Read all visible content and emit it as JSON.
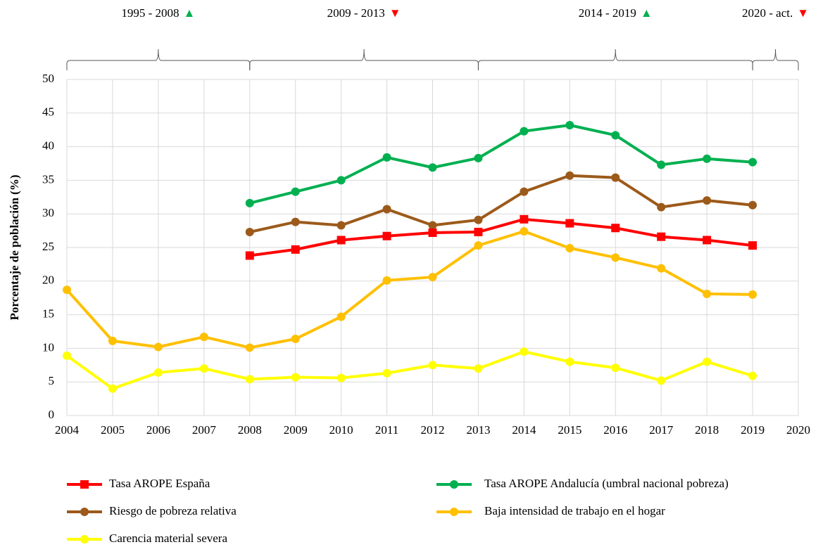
{
  "chart_data": {
    "type": "line",
    "y_label": "Porcentaje de población (%)",
    "x": [
      2004,
      2005,
      2006,
      2007,
      2008,
      2009,
      2010,
      2011,
      2012,
      2013,
      2014,
      2015,
      2016,
      2017,
      2018,
      2019
    ],
    "xlim": [
      2004,
      2020
    ],
    "xticks": [
      2004,
      2005,
      2006,
      2007,
      2008,
      2009,
      2010,
      2011,
      2012,
      2013,
      2014,
      2015,
      2016,
      2017,
      2018,
      2019,
      2020
    ],
    "ylim": [
      0,
      50
    ],
    "yticks": [
      0,
      5,
      10,
      15,
      20,
      25,
      30,
      35,
      40,
      45,
      50
    ],
    "grid": true,
    "legend_position": "bottom",
    "periods": [
      {
        "label": "1995 - 2008",
        "marker": "▲",
        "color": "#00b050",
        "span": [
          2004,
          2008
        ]
      },
      {
        "label": "2009 - 2013",
        "marker": "▼",
        "color": "#ff0000",
        "span": [
          2008,
          2013
        ]
      },
      {
        "label": "2014 - 2019",
        "marker": "▲",
        "color": "#00b050",
        "span": [
          2013,
          2019
        ]
      },
      {
        "label": "2020 - act.",
        "marker": "▼",
        "color": "#ff0000",
        "span": [
          2019,
          2020
        ]
      }
    ],
    "series": [
      {
        "name": "Tasa AROPE España",
        "color": "#ff0000",
        "marker": "square",
        "values": [
          null,
          null,
          null,
          null,
          23.8,
          24.7,
          26.1,
          26.7,
          27.2,
          27.3,
          29.2,
          28.6,
          27.9,
          26.6,
          26.1,
          25.3
        ]
      },
      {
        "name": "Tasa AROPE Andalucía (umbral nacional pobreza)",
        "color": "#00b050",
        "marker": "circle",
        "values": [
          null,
          null,
          null,
          null,
          31.6,
          33.3,
          35.0,
          38.4,
          36.9,
          38.3,
          42.3,
          43.2,
          41.7,
          37.3,
          38.2,
          37.7
        ]
      },
      {
        "name": "Riesgo de pobreza relativa",
        "color": "#9c5a1a",
        "marker": "circle",
        "values": [
          null,
          null,
          null,
          null,
          27.3,
          28.8,
          28.3,
          30.7,
          28.3,
          29.1,
          33.3,
          35.7,
          35.4,
          31.0,
          32.0,
          31.3
        ]
      },
      {
        "name": "Baja intensidad de trabajo en el hogar",
        "color": "#ffc000",
        "marker": "circle",
        "values": [
          18.7,
          11.1,
          10.2,
          11.7,
          10.1,
          11.4,
          14.7,
          20.1,
          20.6,
          25.3,
          27.4,
          24.9,
          23.5,
          21.9,
          18.1,
          18.0
        ]
      },
      {
        "name": "Carencia material severa",
        "color": "#ffff00",
        "marker": "circle",
        "values": [
          8.9,
          4.0,
          6.4,
          7.0,
          5.4,
          5.7,
          5.6,
          6.3,
          7.5,
          7.0,
          9.5,
          8.0,
          7.1,
          5.2,
          8.0,
          5.9
        ]
      }
    ]
  }
}
